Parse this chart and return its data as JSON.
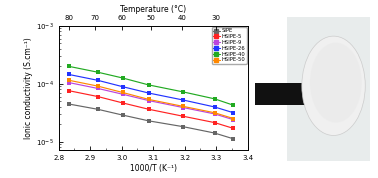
{
  "title_top": "Temperature (°C)",
  "xlabel": "1000/T (K⁻¹)",
  "ylabel": "Ionic conductivity (S.cm⁻¹)",
  "xlim": [
    2.8,
    3.4
  ],
  "x_ticks_bottom": [
    2.8,
    2.9,
    3.0,
    3.1,
    3.2,
    3.3,
    3.4
  ],
  "temps_C": [
    80,
    70,
    60,
    50,
    40,
    30
  ],
  "series": [
    {
      "label": "SIPE",
      "color": "#666666",
      "marker": "s",
      "x": [
        2.833,
        2.924,
        3.003,
        3.086,
        3.195,
        3.295,
        3.355
      ],
      "log10y": [
        -4.35,
        -4.44,
        -4.54,
        -4.64,
        -4.74,
        -4.85,
        -4.95
      ]
    },
    {
      "label": "HSIPE-5",
      "color": "#ff2222",
      "marker": "s",
      "x": [
        2.833,
        2.924,
        3.003,
        3.086,
        3.195,
        3.295,
        3.355
      ],
      "log10y": [
        -4.12,
        -4.22,
        -4.33,
        -4.44,
        -4.56,
        -4.67,
        -4.77
      ]
    },
    {
      "label": "HSIPE-9",
      "color": "#bb44dd",
      "marker": "s",
      "x": [
        2.833,
        2.924,
        3.003,
        3.086,
        3.195,
        3.295,
        3.355
      ],
      "log10y": [
        -3.98,
        -4.08,
        -4.18,
        -4.29,
        -4.41,
        -4.52,
        -4.62
      ]
    },
    {
      "label": "HSIPE-26",
      "color": "#2233ff",
      "marker": "s",
      "x": [
        2.833,
        2.924,
        3.003,
        3.086,
        3.195,
        3.295,
        3.355
      ],
      "log10y": [
        -3.84,
        -3.94,
        -4.05,
        -4.16,
        -4.28,
        -4.4,
        -4.5
      ]
    },
    {
      "label": "HSIPE-40",
      "color": "#22aa22",
      "marker": "s",
      "x": [
        2.833,
        2.924,
        3.003,
        3.086,
        3.195,
        3.295,
        3.355
      ],
      "log10y": [
        -3.7,
        -3.8,
        -3.9,
        -4.02,
        -4.14,
        -4.26,
        -4.37
      ]
    },
    {
      "label": "HSIPE-50",
      "color": "#ff8800",
      "marker": "s",
      "x": [
        2.833,
        2.924,
        3.003,
        3.086,
        3.195,
        3.295,
        3.355
      ],
      "log10y": [
        -3.94,
        -4.04,
        -4.15,
        -4.27,
        -4.39,
        -4.5,
        -4.6
      ]
    }
  ]
}
